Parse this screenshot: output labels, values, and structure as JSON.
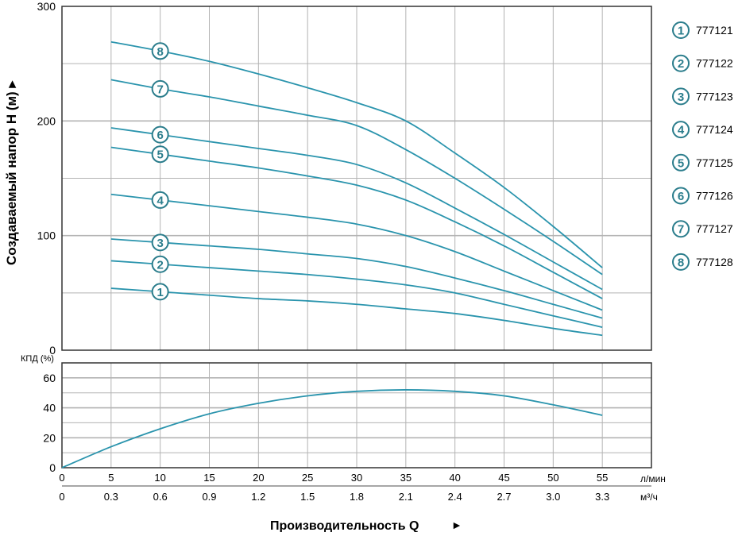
{
  "chart_data": [
    {
      "type": "line",
      "ylabel": "Создаваемый напор H (м) ▸",
      "ylim": [
        0,
        300
      ],
      "xlim": [
        0,
        60
      ],
      "y_ticks": [
        "0",
        "100",
        "200",
        "300"
      ],
      "grid": true,
      "x": [
        5,
        10,
        15,
        20,
        25,
        30,
        35,
        40,
        45,
        50,
        55
      ],
      "series": [
        {
          "name": "777121",
          "marker": "1",
          "values": [
            54,
            51,
            48,
            45,
            43,
            40,
            36,
            32,
            26,
            19,
            13
          ]
        },
        {
          "name": "777122",
          "marker": "2",
          "values": [
            78,
            75,
            72,
            69,
            66,
            62,
            57,
            50,
            40,
            30,
            20
          ]
        },
        {
          "name": "777123",
          "marker": "3",
          "values": [
            97,
            94,
            91,
            88,
            84,
            80,
            73,
            63,
            52,
            40,
            28
          ]
        },
        {
          "name": "777124",
          "marker": "4",
          "values": [
            136,
            131,
            126,
            121,
            116,
            110,
            100,
            86,
            69,
            52,
            35
          ]
        },
        {
          "name": "777125",
          "marker": "5",
          "values": [
            177,
            171,
            165,
            159,
            152,
            144,
            131,
            112,
            91,
            68,
            45
          ]
        },
        {
          "name": "777126",
          "marker": "6",
          "values": [
            194,
            188,
            182,
            176,
            170,
            162,
            146,
            124,
            101,
            77,
            53
          ]
        },
        {
          "name": "777127",
          "marker": "7",
          "values": [
            236,
            228,
            221,
            213,
            205,
            196,
            175,
            150,
            123,
            95,
            66
          ]
        },
        {
          "name": "777128",
          "marker": "8",
          "values": [
            269,
            261,
            252,
            241,
            229,
            216,
            200,
            172,
            142,
            108,
            72
          ]
        }
      ],
      "legend_position": "right"
    },
    {
      "type": "line",
      "ylabel": "КПД (%)",
      "ylim": [
        0,
        70
      ],
      "xlim": [
        0,
        60
      ],
      "y_ticks": [
        "0",
        "20",
        "40",
        "60"
      ],
      "grid": true,
      "x": [
        0,
        5,
        10,
        15,
        20,
        25,
        30,
        35,
        40,
        45,
        50,
        55
      ],
      "values": [
        0,
        14,
        26,
        36,
        43,
        48,
        51,
        52,
        51,
        48,
        42,
        35
      ]
    }
  ],
  "x_axis": {
    "title": "Производительность Q",
    "arrow": "►",
    "lpm_unit": "л/мин",
    "lpm_ticks": [
      "0",
      "5",
      "10",
      "15",
      "20",
      "25",
      "30",
      "35",
      "40",
      "45",
      "50",
      "55"
    ],
    "m3h_unit": "м³/ч",
    "m3h_ticks": [
      "0",
      "0.3",
      "0.6",
      "0.9",
      "1.2",
      "1.5",
      "1.8",
      "2.1",
      "2.4",
      "2.7",
      "3.0",
      "3.3"
    ]
  },
  "colors": {
    "line": "#2a94ad",
    "marker": "#2b7d8c",
    "grid": "#b3b3b3"
  }
}
